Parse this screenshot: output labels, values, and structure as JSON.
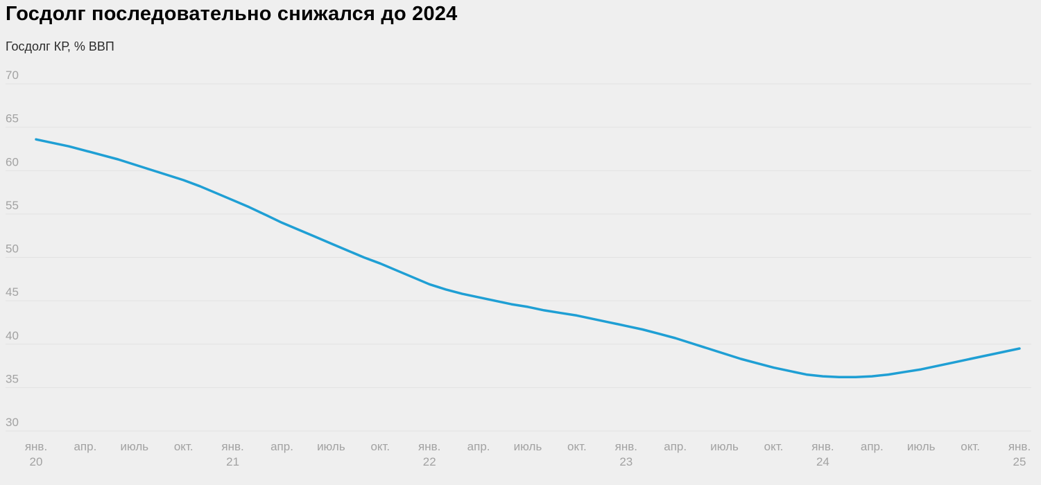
{
  "colors": {
    "background": "#efefef",
    "gridline": "#e2e2e2",
    "axis_label": "#a2a2a2",
    "title": "#000000",
    "subtitle": "#2b2b2b",
    "line": "#1f9fd4"
  },
  "chart_data": {
    "type": "line",
    "title": "Госдолг последовательно снижался до 2024",
    "subtitle": "Госдолг КР, % ВВП",
    "xlabel": "",
    "ylabel": "Госдолг КР, % ВВП",
    "ylim": [
      30,
      70
    ],
    "y_ticks": [
      30,
      35,
      40,
      45,
      50,
      55,
      60,
      65,
      70
    ],
    "grid": "horizontal-only",
    "legend": "none",
    "x_tick_every_months": 3,
    "x_tick_labels": [
      {
        "month": "янв.",
        "year": "20"
      },
      {
        "month": "апр."
      },
      {
        "month": "июль"
      },
      {
        "month": "окт."
      },
      {
        "month": "янв.",
        "year": "21"
      },
      {
        "month": "апр."
      },
      {
        "month": "июль"
      },
      {
        "month": "окт."
      },
      {
        "month": "янв.",
        "year": "22"
      },
      {
        "month": "апр."
      },
      {
        "month": "июль"
      },
      {
        "month": "окт."
      },
      {
        "month": "янв.",
        "year": "23"
      },
      {
        "month": "апр."
      },
      {
        "month": "июль"
      },
      {
        "month": "окт."
      },
      {
        "month": "янв.",
        "year": "24"
      },
      {
        "month": "апр."
      },
      {
        "month": "июль"
      },
      {
        "month": "окт."
      },
      {
        "month": "янв.",
        "year": "25"
      }
    ],
    "series": [
      {
        "name": "Госдолг КР, % ВВП",
        "color": "#1f9fd4",
        "x": [
          "2020-01",
          "2020-02",
          "2020-03",
          "2020-04",
          "2020-05",
          "2020-06",
          "2020-07",
          "2020-08",
          "2020-09",
          "2020-10",
          "2020-11",
          "2020-12",
          "2021-01",
          "2021-02",
          "2021-03",
          "2021-04",
          "2021-05",
          "2021-06",
          "2021-07",
          "2021-08",
          "2021-09",
          "2021-10",
          "2021-11",
          "2021-12",
          "2022-01",
          "2022-02",
          "2022-03",
          "2022-04",
          "2022-05",
          "2022-06",
          "2022-07",
          "2022-08",
          "2022-09",
          "2022-10",
          "2022-11",
          "2022-12",
          "2023-01",
          "2023-02",
          "2023-03",
          "2023-04",
          "2023-05",
          "2023-06",
          "2023-07",
          "2023-08",
          "2023-09",
          "2023-10",
          "2023-11",
          "2023-12",
          "2024-01",
          "2024-02",
          "2024-03",
          "2024-04",
          "2024-05",
          "2024-06",
          "2024-07",
          "2024-08",
          "2024-09",
          "2024-10",
          "2024-11",
          "2024-12",
          "2025-01"
        ],
        "values": [
          63.6,
          63.2,
          62.8,
          62.3,
          61.8,
          61.3,
          60.7,
          60.1,
          59.5,
          58.9,
          58.2,
          57.4,
          56.6,
          55.8,
          54.9,
          54.0,
          53.2,
          52.4,
          51.6,
          50.8,
          50.0,
          49.3,
          48.5,
          47.7,
          46.9,
          46.3,
          45.8,
          45.4,
          45.0,
          44.6,
          44.3,
          43.9,
          43.6,
          43.3,
          42.9,
          42.5,
          42.1,
          41.7,
          41.2,
          40.7,
          40.1,
          39.5,
          38.9,
          38.3,
          37.8,
          37.3,
          36.9,
          36.5,
          36.3,
          36.2,
          36.2,
          36.3,
          36.5,
          36.8,
          37.1,
          37.5,
          37.9,
          38.3,
          38.7,
          39.1,
          39.5
        ]
      }
    ]
  }
}
